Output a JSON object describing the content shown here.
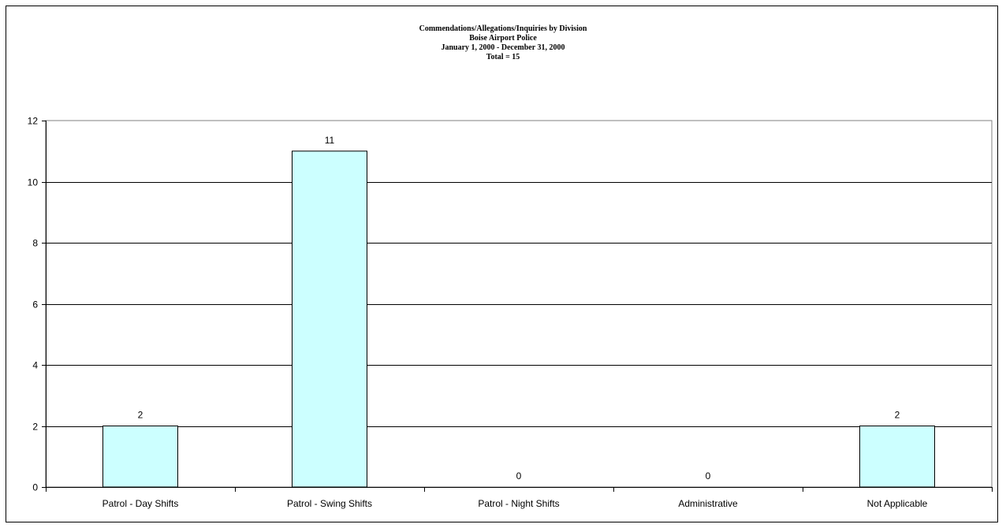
{
  "chart_data": {
    "type": "bar",
    "title": "Commendations/Allegations/Inquiries by Division",
    "subtitle_lines": [
      "Boise Airport Police",
      "January 1, 2000 - December 31, 2000",
      "Total = 15"
    ],
    "categories": [
      "Patrol - Day Shifts",
      "Patrol - Swing Shifts",
      "Patrol - Night Shifts",
      "Administrative",
      "Not Applicable"
    ],
    "values": [
      2,
      11,
      0,
      0,
      2
    ],
    "data_labels": [
      "2",
      "11",
      "0",
      "0",
      "2"
    ],
    "ylim": [
      0,
      12
    ],
    "yticks": [
      0,
      2,
      4,
      6,
      8,
      10,
      12
    ],
    "grid": true,
    "legend": "none",
    "bar_color": "#CCFFFF",
    "xlabel": "",
    "ylabel": ""
  }
}
